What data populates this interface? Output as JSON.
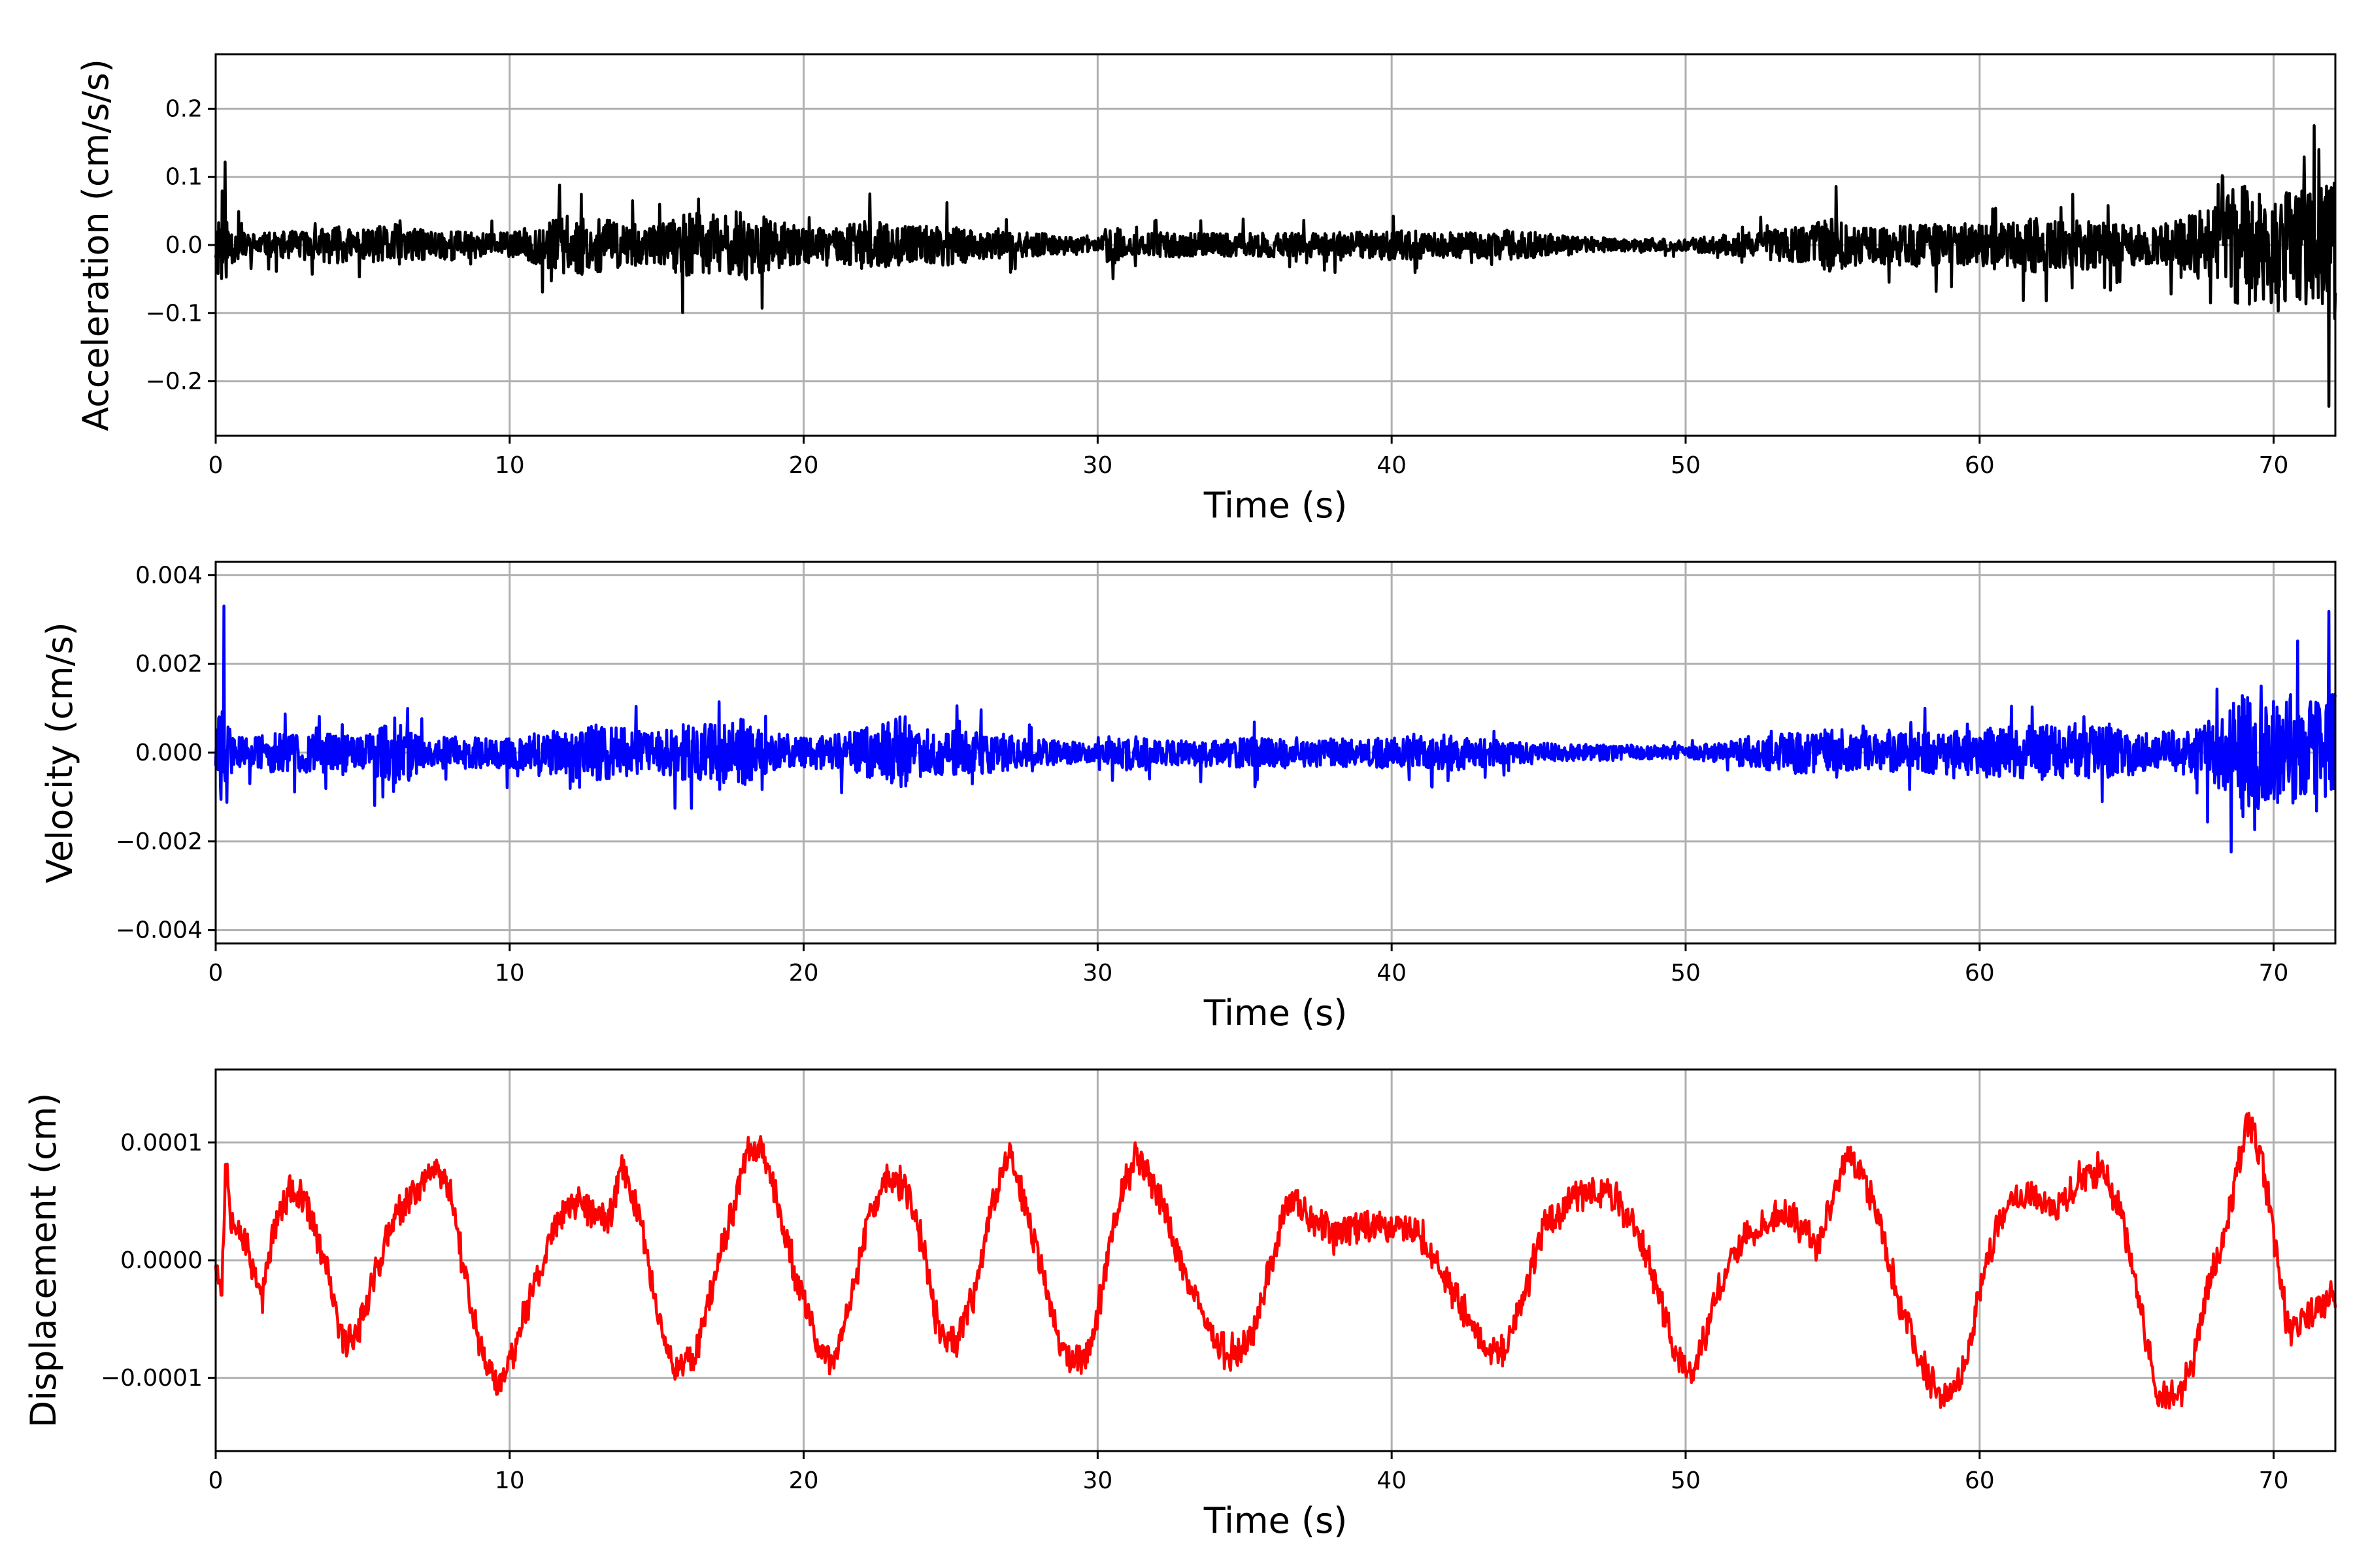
{
  "chart_data": [
    {
      "type": "line",
      "title": "",
      "xlabel": "Time (s)",
      "ylabel": "Acceleration (cm/s/s)",
      "xlim": [
        0,
        72.1
      ],
      "ylim": [
        -0.28,
        0.28
      ],
      "x_ticks": [
        0,
        10,
        20,
        30,
        40,
        50,
        60,
        70
      ],
      "x_tick_labels": [
        "0",
        "10",
        "20",
        "30",
        "40",
        "50",
        "60",
        "70"
      ],
      "y_ticks": [
        -0.2,
        -0.1,
        0.0,
        0.1,
        0.2
      ],
      "y_tick_labels": [
        "−0.2",
        "−0.1",
        "0.0",
        "0.1",
        "0.2"
      ],
      "grid": true,
      "series": [
        {
          "color": "#000000",
          "x": [
            0.0,
            0.15,
            0.3,
            0.45,
            0.6,
            1.0,
            2.0,
            3.0,
            4.0,
            5.0,
            6.0,
            7.0,
            8.0,
            9.0,
            10.0,
            11.0,
            11.5,
            12.5,
            13.5,
            15.0,
            16.0,
            16.5,
            17.5,
            18.0,
            19.0,
            20.0,
            21.0,
            22.0,
            23.0,
            24.0,
            25.0,
            26.0,
            27.0,
            28.0,
            29.0,
            30.0,
            30.5,
            31.0,
            32.0,
            34.0,
            36.0,
            38.0,
            40.0,
            42.0,
            44.0,
            46.0,
            48.0,
            50.0,
            52.0,
            54.0,
            55.0,
            56.0,
            58.0,
            60.0,
            62.0,
            64.0,
            66.0,
            67.0,
            68.0,
            68.5,
            69.0,
            69.5,
            70.0,
            70.5,
            71.0,
            71.5,
            72.0
          ],
          "amplitude": [
            0.08,
            0.15,
            0.14,
            0.07,
            0.06,
            0.04,
            0.04,
            0.05,
            0.06,
            0.05,
            0.07,
            0.05,
            0.05,
            0.04,
            0.04,
            0.07,
            0.09,
            0.1,
            0.08,
            0.06,
            0.11,
            0.1,
            0.1,
            0.12,
            0.08,
            0.06,
            0.05,
            0.08,
            0.07,
            0.06,
            0.07,
            0.05,
            0.04,
            0.04,
            0.03,
            0.02,
            0.08,
            0.03,
            0.04,
            0.04,
            0.04,
            0.04,
            0.05,
            0.04,
            0.05,
            0.03,
            0.02,
            0.02,
            0.04,
            0.06,
            0.09,
            0.06,
            0.07,
            0.07,
            0.09,
            0.08,
            0.06,
            0.09,
            0.14,
            0.17,
            0.22,
            0.17,
            0.2,
            0.18,
            0.2,
            0.18,
            0.26
          ]
        }
      ]
    },
    {
      "type": "line",
      "title": "",
      "xlabel": "Time (s)",
      "ylabel": "Velocity (cm/s)",
      "xlim": [
        0,
        72.1
      ],
      "ylim": [
        -0.0043,
        0.0043
      ],
      "x_ticks": [
        0,
        10,
        20,
        30,
        40,
        50,
        60,
        70
      ],
      "x_tick_labels": [
        "0",
        "10",
        "20",
        "30",
        "40",
        "50",
        "60",
        "70"
      ],
      "y_ticks": [
        -0.004,
        -0.002,
        0.0,
        0.002,
        0.004
      ],
      "y_tick_labels": [
        "−0.004",
        "−0.002",
        "0.000",
        "0.002",
        "0.004"
      ],
      "grid": true,
      "series": [
        {
          "color": "#0000ff",
          "x": [
            0.0,
            0.15,
            0.3,
            0.45,
            0.6,
            1.0,
            2.0,
            3.0,
            4.0,
            5.0,
            6.0,
            7.0,
            8.0,
            9.0,
            10.0,
            11.0,
            12.0,
            13.0,
            14.0,
            15.0,
            16.0,
            17.0,
            17.5,
            18.0,
            19.0,
            20.0,
            21.0,
            22.0,
            22.5,
            23.5,
            24.0,
            25.0,
            26.0,
            27.0,
            28.0,
            29.0,
            30.0,
            31.0,
            32.0,
            34.0,
            36.0,
            38.0,
            40.0,
            42.0,
            44.0,
            46.0,
            48.0,
            50.0,
            52.0,
            54.0,
            56.0,
            58.0,
            60.0,
            62.0,
            64.0,
            66.0,
            67.0,
            68.0,
            68.5,
            69.0,
            69.5,
            70.0,
            70.5,
            71.0,
            71.5,
            72.0
          ],
          "amplitude": [
            0.0013,
            0.0022,
            0.004,
            0.0015,
            0.0008,
            0.0008,
            0.001,
            0.001,
            0.001,
            0.0009,
            0.0018,
            0.0008,
            0.0008,
            0.0008,
            0.0008,
            0.001,
            0.0012,
            0.0014,
            0.0012,
            0.001,
            0.0016,
            0.0014,
            0.0017,
            0.0018,
            0.001,
            0.0008,
            0.0009,
            0.0012,
            0.0015,
            0.0019,
            0.0012,
            0.0011,
            0.0011,
            0.0009,
            0.0007,
            0.0006,
            0.0004,
            0.0009,
            0.0006,
            0.0007,
            0.0008,
            0.0007,
            0.0008,
            0.0009,
            0.0006,
            0.0004,
            0.0004,
            0.0003,
            0.0007,
            0.0011,
            0.0009,
            0.001,
            0.0012,
            0.0014,
            0.0013,
            0.001,
            0.0012,
            0.0018,
            0.0022,
            0.0034,
            0.0028,
            0.0026,
            0.003,
            0.0027,
            0.003,
            0.0034
          ]
        }
      ]
    },
    {
      "type": "line",
      "title": "",
      "xlabel": "Time (s)",
      "ylabel": "Displacement (cm)",
      "xlim": [
        0,
        72.1
      ],
      "ylim": [
        -0.000162,
        0.000162
      ],
      "x_ticks": [
        0,
        10,
        20,
        30,
        40,
        50,
        60,
        70
      ],
      "x_tick_labels": [
        "0",
        "10",
        "20",
        "30",
        "40",
        "50",
        "60",
        "70"
      ],
      "y_ticks": [
        -0.0001,
        0.0,
        0.0001
      ],
      "y_tick_labels": [
        "−0.0001",
        "0.0000",
        "0.0001"
      ],
      "grid": true,
      "series": [
        {
          "color": "#ff0000",
          "x": [
            0.0,
            0.2,
            0.35,
            0.5,
            0.8,
            1.2,
            1.6,
            2.0,
            2.6,
            3.2,
            3.8,
            4.3,
            4.8,
            5.3,
            6.0,
            6.8,
            7.5,
            8.0,
            8.6,
            9.1,
            9.6,
            10.2,
            11.0,
            11.7,
            12.5,
            13.3,
            13.8,
            14.4,
            15.0,
            15.6,
            16.3,
            17.0,
            17.7,
            18.1,
            18.6,
            19.2,
            19.8,
            20.4,
            21.0,
            21.6,
            22.2,
            22.8,
            23.5,
            24.0,
            24.6,
            25.2,
            25.8,
            26.4,
            27.0,
            27.5,
            28.2,
            28.8,
            29.3,
            29.9,
            30.6,
            31.3,
            32.0,
            32.8,
            33.6,
            34.4,
            35.2,
            35.8,
            36.5,
            37.2,
            38.0,
            39.0,
            40.0,
            41.0,
            42.0,
            43.0,
            43.8,
            44.5,
            45.2,
            46.0,
            46.8,
            47.6,
            48.3,
            49.0,
            49.7,
            50.2,
            50.8,
            51.5,
            52.5,
            53.5,
            54.5,
            55.0,
            55.5,
            56.0,
            56.5,
            57.2,
            58.0,
            58.5,
            59.0,
            59.6,
            60.2,
            61.0,
            61.8,
            62.6,
            63.4,
            64.2,
            64.8,
            65.4,
            66.0,
            66.6,
            67.2,
            67.8,
            68.4,
            68.8,
            69.2,
            69.6,
            70.0,
            70.5,
            71.0,
            71.5,
            72.0
          ],
          "y": [
            0.0,
            -3e-05,
            9e-05,
            4e-05,
            3e-05,
            0.0,
            -3e-05,
            3e-05,
            6e-05,
            4e-05,
            -1e-05,
            -7e-05,
            -6e-05,
            -2e-05,
            3e-05,
            6e-05,
            8e-05,
            6e-05,
            -3e-05,
            -8e-05,
            -0.00011,
            -7e-05,
            -1e-05,
            4e-05,
            5e-05,
            3e-05,
            8e-05,
            4e-05,
            -4e-05,
            -9e-05,
            -8e-05,
            -1e-05,
            5e-05,
            0.0001,
            9e-05,
            4e-05,
            -2e-05,
            -7e-05,
            -9e-05,
            -3e-05,
            3e-05,
            7e-05,
            6e-05,
            2e-05,
            -6e-05,
            -7e-05,
            -3e-05,
            5e-05,
            9e-05,
            5e-05,
            -2e-05,
            -8e-05,
            -9e-05,
            -6e-05,
            4e-05,
            9e-05,
            6e-05,
            0.0,
            -5e-05,
            -8e-05,
            -7e-05,
            -1e-05,
            5e-05,
            4e-05,
            2e-05,
            3e-05,
            3e-05,
            2e-05,
            -2e-05,
            -7e-05,
            -8e-05,
            -3e-05,
            3e-05,
            5e-05,
            6e-05,
            5e-05,
            3e-05,
            -2e-05,
            -8e-05,
            -0.0001,
            -5e-05,
            0.0,
            3e-05,
            4e-05,
            1e-05,
            5e-05,
            9e-05,
            7e-05,
            4e-05,
            -3e-05,
            -9e-05,
            -0.00011,
            -0.00012,
            -8e-05,
            0.0,
            5e-05,
            6e-05,
            4e-05,
            7e-05,
            8e-05,
            4e-05,
            -3e-05,
            -0.00011,
            -0.00012,
            -9e-05,
            -2e-05,
            3e-05,
            8e-05,
            0.00012,
            9e-05,
            2e-05,
            -6e-05,
            -5e-05,
            -4e-05,
            -3e-05
          ],
          "noise": 1.3e-05
        }
      ]
    }
  ]
}
